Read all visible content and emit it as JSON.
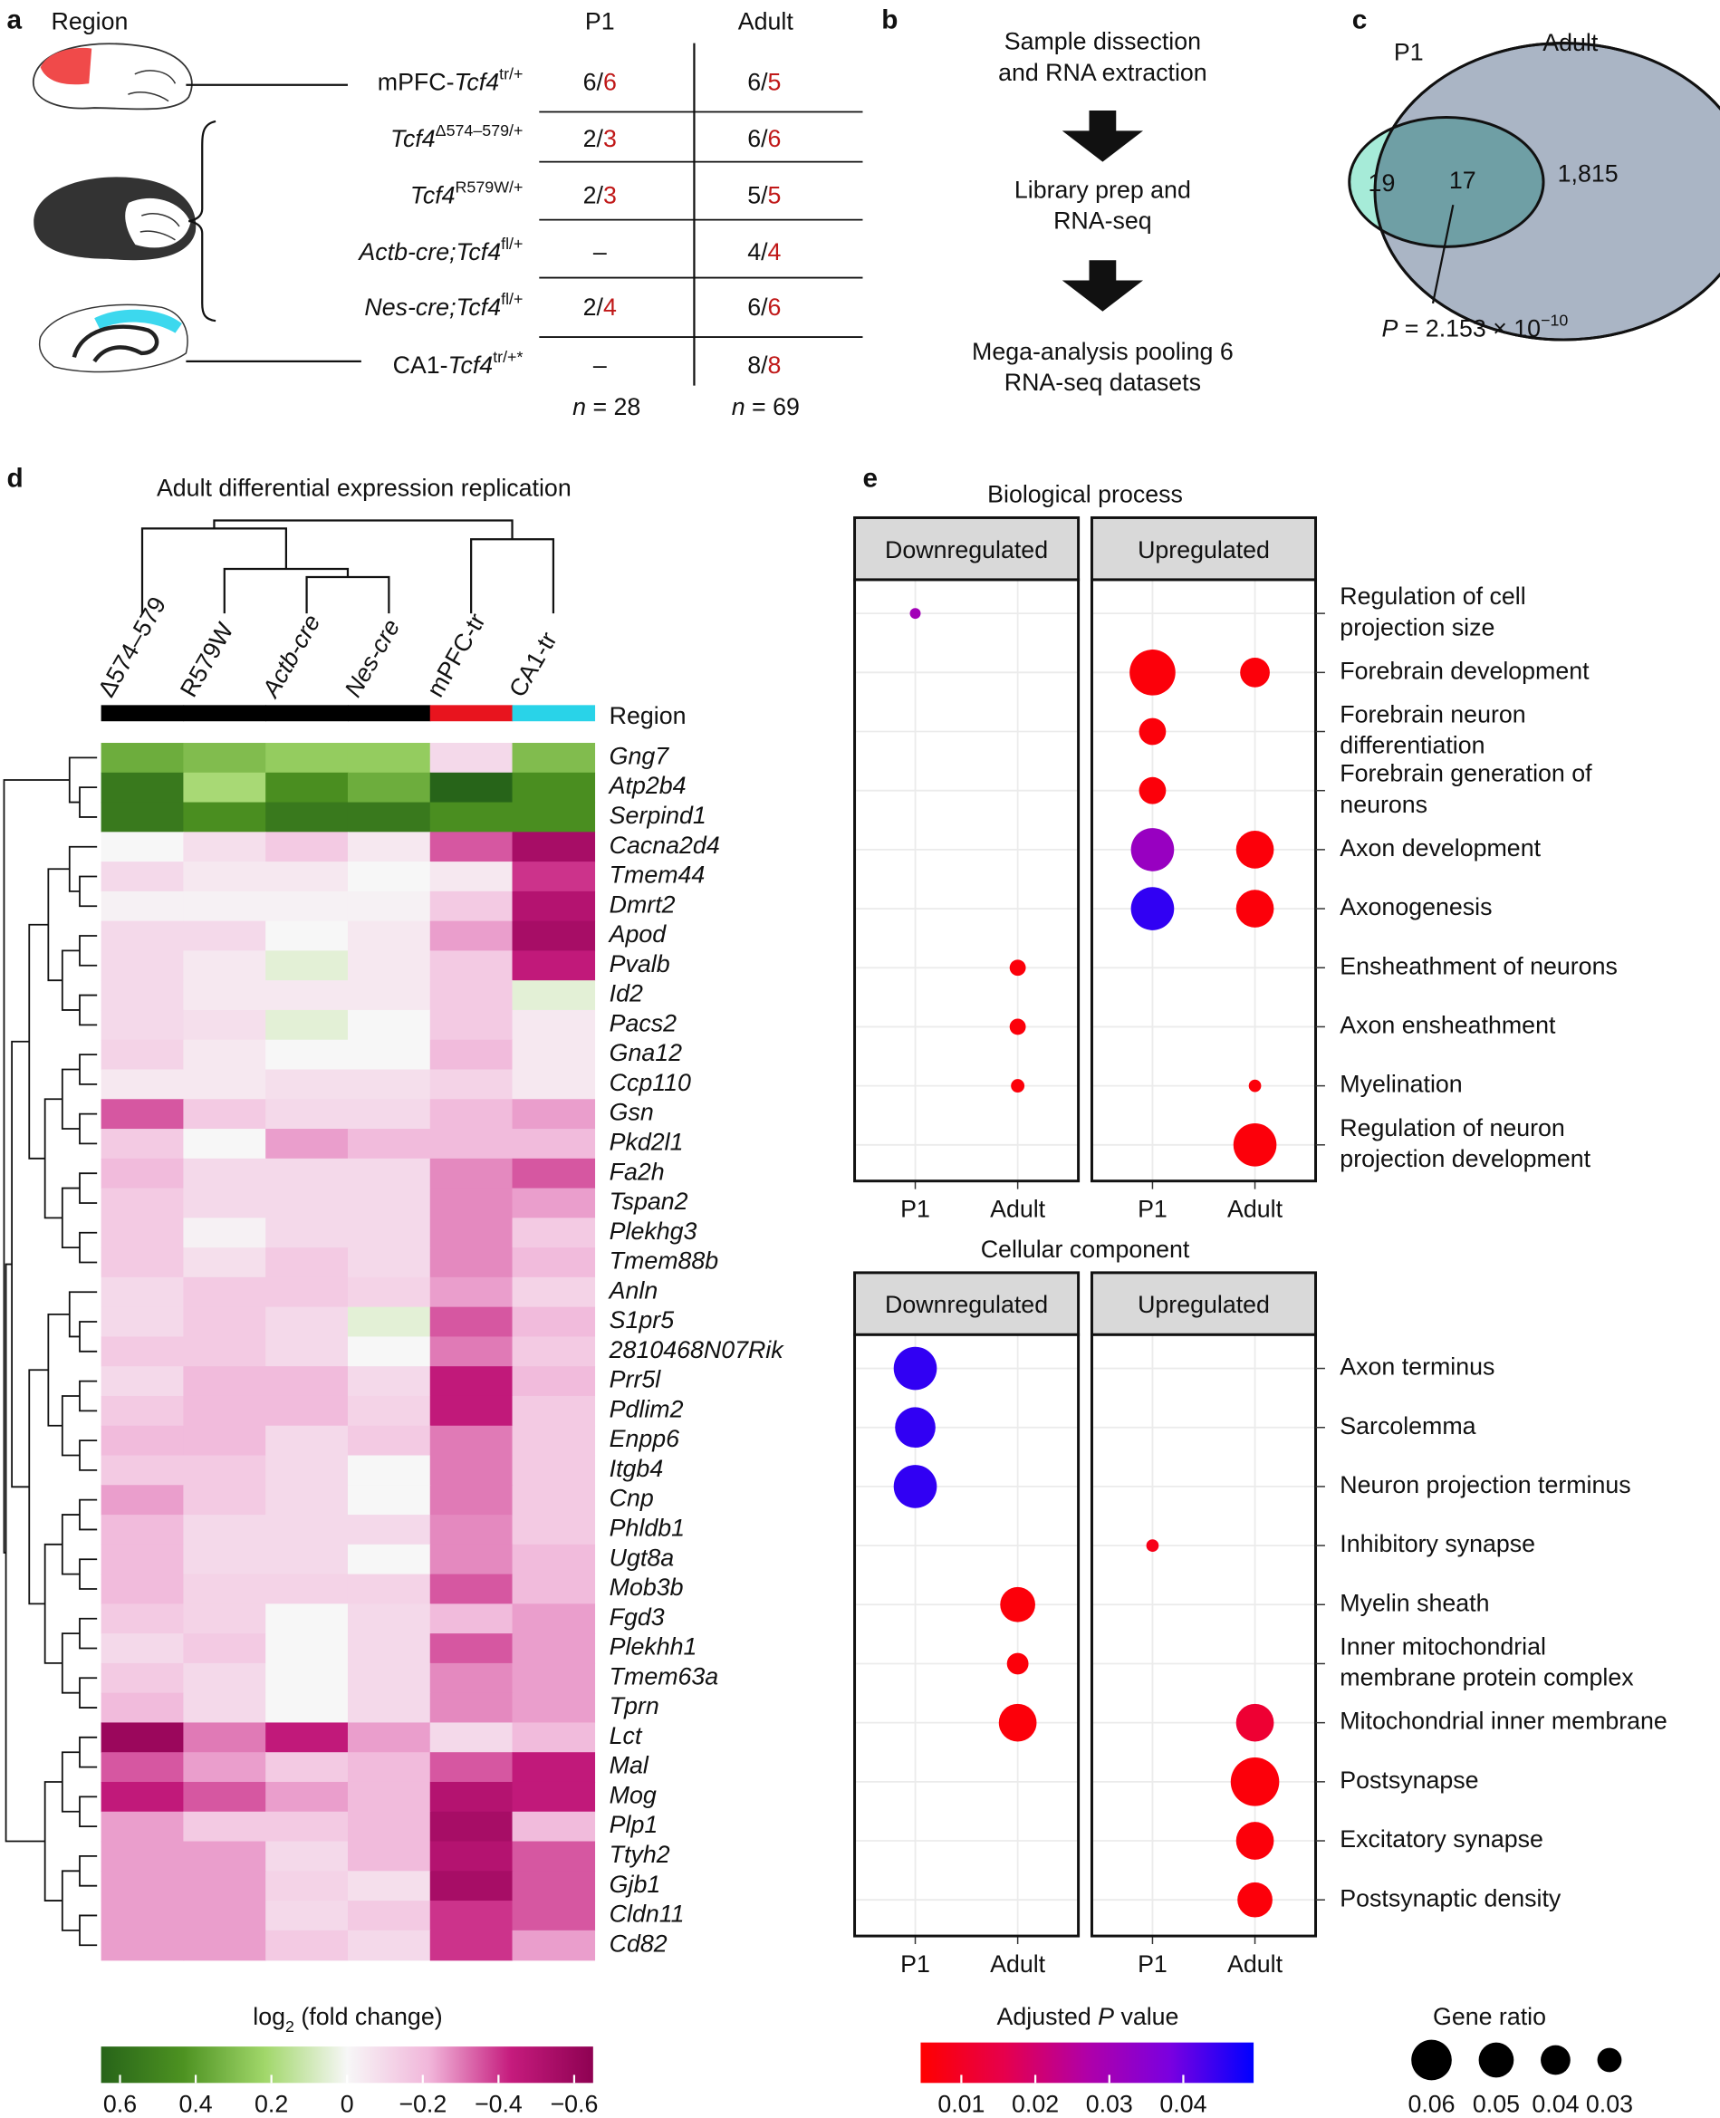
{
  "panel_a": {
    "label": "a",
    "region": "Region",
    "p1": "P1",
    "adult": "Adult",
    "rows": [
      {
        "pre": "mPFC-",
        "gene": "Tcf4",
        "sup": "tr/+",
        "p1": [
          "6/",
          "6"
        ],
        "adult": [
          "6/",
          "5"
        ]
      },
      {
        "gene": "Tcf4",
        "sup": "Δ574–579/+",
        "p1": [
          "2/",
          "3"
        ],
        "adult": [
          "6/",
          "6"
        ]
      },
      {
        "gene": "Tcf4",
        "sup": "R579W/+",
        "p1": [
          "2/",
          "3"
        ],
        "adult": [
          "5/",
          "5"
        ]
      },
      {
        "gene": "Actb-cre;Tcf4",
        "sup": "fl/+",
        "p1": [
          "–"
        ],
        "adult": [
          "4/",
          "4"
        ]
      },
      {
        "gene": "Nes-cre;Tcf4",
        "sup": "fl/+",
        "p1": [
          "2/",
          "4"
        ],
        "adult": [
          "6/",
          "6"
        ]
      },
      {
        "pre": "CA1-",
        "gene": "Tcf4",
        "sup": "tr/+*",
        "p1": [
          "–"
        ],
        "adult": [
          "8/",
          "8"
        ]
      }
    ],
    "n_p1": {
      "var": "n",
      "text": " = 28"
    },
    "n_adult": {
      "var": "n",
      "text": " = 69"
    }
  },
  "panel_b": {
    "label": "b",
    "steps": [
      [
        "Sample dissection",
        "and RNA extraction"
      ],
      [
        "Library prep and",
        "RNA-seq"
      ],
      [
        "Mega-analysis pooling 6",
        "RNA-seq datasets"
      ]
    ]
  },
  "panel_c": {
    "label": "c",
    "p1": "P1",
    "adult": "Adult",
    "only_p1": "19",
    "shared": "17",
    "only_adult": "1,815",
    "p": {
      "var": "P",
      "text": " =  2.153 × 10",
      "exp": "−10"
    }
  },
  "chart_data": [
    {
      "type": "heatmap",
      "label": "d",
      "title": "Adult differential expression replication",
      "columns": [
        {
          "text": "Δ574–579"
        },
        {
          "text": "R579W"
        },
        {
          "text": "Actb-cre",
          "italic": true
        },
        {
          "text": "Nes-cre",
          "italic": true
        },
        {
          "text": "mPFC-tr"
        },
        {
          "text": "CA1-tr"
        }
      ],
      "column_region_colors": [
        "#000000",
        "#000000",
        "#000000",
        "#000000",
        "#e8141e",
        "#29d3e8"
      ],
      "region_label": "Region",
      "rows": [
        "Gng7",
        "Atp2b4",
        "Serpind1",
        "Cacna2d4",
        "Tmem44",
        "Dmrt2",
        "Apod",
        "Pvalb",
        "Id2",
        "Pacs2",
        "Gna12",
        "Ccp110",
        "Gsn",
        "Pkd2l1",
        "Fa2h",
        "Tspan2",
        "Plekhg3",
        "Tmem88b",
        "Anln",
        "S1pr5",
        "2810468N07Rik",
        "Prr5l",
        "Pdlim2",
        "Enpp6",
        "Itgb4",
        "Cnp",
        "Phldb1",
        "Ugt8a",
        "Mob3b",
        "Fgd3",
        "Plekhh1",
        "Tmem63a",
        "Tprn",
        "Lct",
        "Mal",
        "Mog",
        "Plp1",
        "Ttyh2",
        "Gjb1",
        "Cldn11",
        "Cd82"
      ],
      "values": [
        [
          0.35,
          0.3,
          0.25,
          0.25,
          -0.1,
          0.3
        ],
        [
          0.55,
          0.2,
          0.45,
          0.35,
          0.65,
          0.45
        ],
        [
          0.55,
          0.45,
          0.55,
          0.55,
          0.45,
          0.45
        ],
        [
          0,
          -0.08,
          -0.15,
          -0.05,
          -0.35,
          -0.55
        ],
        [
          -0.1,
          -0.05,
          -0.05,
          0,
          -0.05,
          -0.4
        ],
        [
          -0.02,
          -0.02,
          -0.02,
          -0.02,
          -0.15,
          -0.5
        ],
        [
          -0.1,
          -0.1,
          0,
          -0.05,
          -0.25,
          -0.55
        ],
        [
          -0.1,
          -0.05,
          0.05,
          -0.05,
          -0.15,
          -0.45
        ],
        [
          -0.1,
          -0.05,
          -0.05,
          -0.05,
          -0.15,
          0.05
        ],
        [
          -0.1,
          -0.08,
          0.05,
          0,
          -0.15,
          -0.05
        ],
        [
          -0.12,
          -0.05,
          0,
          0,
          -0.2,
          -0.05
        ],
        [
          -0.05,
          -0.05,
          -0.08,
          -0.08,
          -0.12,
          -0.05
        ],
        [
          -0.35,
          -0.15,
          -0.1,
          -0.1,
          -0.2,
          -0.25
        ],
        [
          -0.15,
          0,
          -0.25,
          -0.2,
          -0.2,
          -0.2
        ],
        [
          -0.2,
          -0.1,
          -0.1,
          -0.1,
          -0.28,
          -0.35
        ],
        [
          -0.15,
          -0.1,
          -0.1,
          -0.1,
          -0.28,
          -0.25
        ],
        [
          -0.15,
          -0.02,
          -0.1,
          -0.1,
          -0.28,
          -0.15
        ],
        [
          -0.15,
          -0.08,
          -0.15,
          -0.1,
          -0.28,
          -0.2
        ],
        [
          -0.1,
          -0.15,
          -0.15,
          -0.12,
          -0.25,
          -0.12
        ],
        [
          -0.1,
          -0.15,
          -0.1,
          0.05,
          -0.35,
          -0.2
        ],
        [
          -0.15,
          -0.15,
          -0.1,
          0,
          -0.3,
          -0.15
        ],
        [
          -0.1,
          -0.2,
          -0.2,
          -0.1,
          -0.45,
          -0.2
        ],
        [
          -0.15,
          -0.2,
          -0.2,
          -0.12,
          -0.45,
          -0.15
        ],
        [
          -0.2,
          -0.2,
          -0.1,
          -0.15,
          -0.3,
          -0.15
        ],
        [
          -0.15,
          -0.15,
          -0.1,
          0,
          -0.3,
          -0.15
        ],
        [
          -0.25,
          -0.15,
          -0.1,
          0,
          -0.3,
          -0.15
        ],
        [
          -0.2,
          -0.1,
          -0.1,
          -0.1,
          -0.28,
          -0.15
        ],
        [
          -0.2,
          -0.1,
          -0.1,
          0,
          -0.28,
          -0.2
        ],
        [
          -0.2,
          -0.12,
          -0.12,
          -0.12,
          -0.35,
          -0.2
        ],
        [
          -0.15,
          -0.12,
          0,
          -0.1,
          -0.2,
          -0.25
        ],
        [
          -0.1,
          -0.15,
          0,
          -0.1,
          -0.35,
          -0.25
        ],
        [
          -0.15,
          -0.1,
          0,
          -0.1,
          -0.28,
          -0.25
        ],
        [
          -0.2,
          -0.1,
          0,
          -0.1,
          -0.28,
          -0.25
        ],
        [
          -0.6,
          -0.3,
          -0.45,
          -0.25,
          -0.1,
          -0.2
        ],
        [
          -0.35,
          -0.25,
          -0.15,
          -0.2,
          -0.35,
          -0.45
        ],
        [
          -0.45,
          -0.35,
          -0.25,
          -0.2,
          -0.5,
          -0.45
        ],
        [
          -0.25,
          -0.15,
          -0.15,
          -0.2,
          -0.55,
          -0.2
        ],
        [
          -0.25,
          -0.25,
          -0.1,
          -0.2,
          -0.5,
          -0.35
        ],
        [
          -0.25,
          -0.25,
          -0.12,
          -0.08,
          -0.55,
          -0.35
        ],
        [
          -0.25,
          -0.25,
          -0.1,
          -0.15,
          -0.4,
          -0.35
        ],
        [
          -0.25,
          -0.25,
          -0.15,
          -0.1,
          -0.4,
          -0.25
        ]
      ],
      "colorbar": {
        "title": {
          "pre": "log",
          "sub": "2",
          "post": " (fold change)"
        },
        "clim": [
          0.65,
          -0.65
        ],
        "ticks": [
          0.6,
          0.4,
          0.2,
          0,
          {
            "value": -0.2,
            "label": "−0.2"
          },
          {
            "value": -0.4,
            "label": "−0.4"
          },
          {
            "value": -0.6,
            "label": "−0.6"
          }
        ],
        "colors": [
          "#276419",
          "#4d9221",
          "#a1d76a",
          "#f7f7f7",
          "#f1b6da",
          "#c51b7d",
          "#8e0152"
        ]
      }
    },
    {
      "type": "dotplot",
      "label": "e",
      "title": "Biological process",
      "terms": [
        [
          "Regulation of cell",
          "projection size"
        ],
        [
          "Forebrain development"
        ],
        [
          "Forebrain neuron",
          "differentiation"
        ],
        [
          "Forebrain generation of",
          "neurons"
        ],
        [
          "Axon development"
        ],
        [
          "Axonogenesis"
        ],
        [
          "Ensheathment of neurons"
        ],
        [
          "Axon ensheathment"
        ],
        [
          "Myelination"
        ],
        [
          "Regulation of neuron",
          "projection development"
        ]
      ],
      "facets": [
        {
          "name": "Downregulated",
          "series": [
            {
              "name": "P1",
              "padj": [
                0.03,
                null,
                null,
                null,
                null,
                null,
                null,
                null,
                null,
                null
              ],
              "ratio": [
                0.005,
                null,
                null,
                null,
                null,
                null,
                null,
                null,
                null,
                null
              ]
            },
            {
              "name": "Adult",
              "padj": [
                null,
                null,
                null,
                null,
                null,
                null,
                0.006,
                0.006,
                0.006,
                null
              ],
              "ratio": [
                null,
                null,
                null,
                null,
                null,
                null,
                0.015,
                0.015,
                0.01,
                null
              ]
            }
          ]
        },
        {
          "name": "Upregulated",
          "series": [
            {
              "name": "P1",
              "padj": [
                null,
                0.006,
                0.006,
                0.006,
                0.032,
                0.045,
                null,
                null,
                null,
                null
              ],
              "ratio": [
                null,
                0.07,
                0.035,
                0.035,
                0.065,
                0.065,
                null,
                null,
                null,
                null
              ]
            },
            {
              "name": "Adult",
              "padj": [
                null,
                0.006,
                null,
                null,
                0.006,
                0.006,
                null,
                null,
                0.006,
                0.006
              ],
              "ratio": [
                null,
                0.04,
                null,
                null,
                0.055,
                0.055,
                null,
                null,
                0.008,
                0.065
              ]
            }
          ]
        }
      ]
    },
    {
      "type": "dotplot",
      "title": "Cellular component",
      "terms": [
        [
          "Axon terminus"
        ],
        [
          "Sarcolemma"
        ],
        [
          "Neuron projection terminus"
        ],
        [
          "Inhibitory synapse"
        ],
        [
          "Myelin sheath"
        ],
        [
          "Inner mitochondrial",
          "membrane protein complex"
        ],
        [
          "Mitochondrial inner membrane"
        ],
        [
          "Postsynapse"
        ],
        [
          "Excitatory synapse"
        ],
        [
          "Postsynaptic density"
        ]
      ],
      "facets": [
        {
          "name": "Downregulated",
          "series": [
            {
              "name": "P1",
              "padj": [
                0.045,
                0.045,
                0.045,
                null,
                null,
                null,
                null,
                null,
                null,
                null
              ],
              "ratio": [
                0.065,
                0.06,
                0.065,
                null,
                null,
                null,
                null,
                null,
                null,
                null
              ]
            },
            {
              "name": "Adult",
              "padj": [
                null,
                null,
                null,
                null,
                0.006,
                0.006,
                0.006,
                null,
                null,
                null
              ],
              "ratio": [
                null,
                null,
                null,
                null,
                0.05,
                0.025,
                0.055,
                null,
                null,
                null
              ]
            }
          ]
        },
        {
          "name": "Upregulated",
          "series": [
            {
              "name": "P1",
              "padj": [
                null,
                null,
                null,
                0.008,
                null,
                null,
                null,
                null,
                null,
                null
              ],
              "ratio": [
                null,
                null,
                null,
                0.008,
                null,
                null,
                null,
                null,
                null,
                null
              ]
            },
            {
              "name": "Adult",
              "padj": [
                null,
                null,
                null,
                null,
                null,
                null,
                0.012,
                0.006,
                0.006,
                0.006
              ],
              "ratio": [
                null,
                null,
                null,
                null,
                null,
                null,
                0.055,
                0.075,
                0.055,
                0.05
              ]
            }
          ]
        }
      ],
      "color_scale": {
        "title": {
          "pre": "Adjusted ",
          "var": "P",
          "post": " value"
        },
        "clim": [
          0.0045,
          0.0495
        ],
        "ticks": [
          0.01,
          0.02,
          0.03,
          0.04
        ],
        "colors": [
          "#ff0000",
          "#e6004c",
          "#b000a8",
          "#7a00e0",
          "#0000ff"
        ]
      },
      "size_legend": {
        "title": "Gene ratio",
        "values": [
          0.06,
          0.05,
          0.04,
          0.03
        ]
      }
    }
  ]
}
